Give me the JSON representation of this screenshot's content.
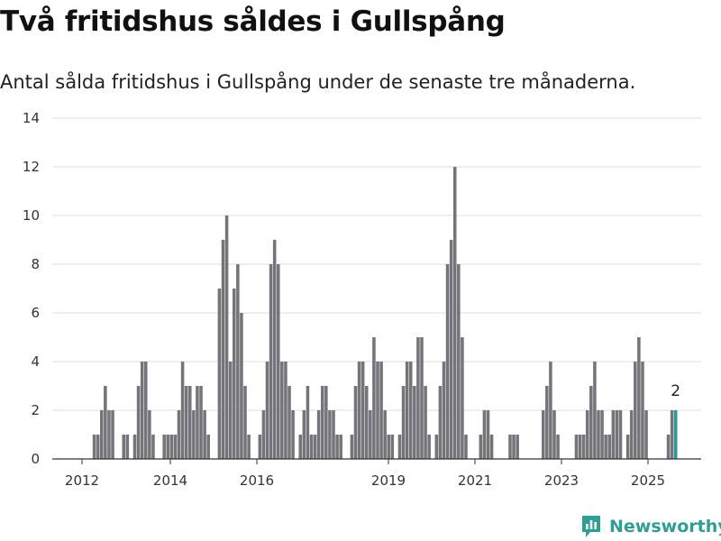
{
  "header": {
    "title": "Två fritidshus såldes i Gullspång",
    "subtitle": "Antal sålda fritidshus i Gullspång under de senaste tre månaderna."
  },
  "brand": {
    "name": "Newsworthy",
    "color": "#2f9e94",
    "icon": "newsworthy-logo-icon"
  },
  "colors": {
    "bar": "#75747a",
    "highlight": "#2a9a91",
    "grid": "#dddddd",
    "axis": "#333333"
  },
  "chart_data": {
    "type": "bar",
    "title": "Två fritidshus såldes i Gullspång",
    "subtitle": "Antal sålda fritidshus i Gullspång under de senaste tre månaderna.",
    "x_ticks": [
      "2012",
      "2014",
      "2016",
      "2019",
      "2021",
      "2023",
      "2025"
    ],
    "y_ticks": [
      0,
      2,
      4,
      6,
      8,
      10,
      12,
      14
    ],
    "ylim": [
      0,
      14
    ],
    "grid": true,
    "series": [
      {
        "values": [
          0,
          0,
          0,
          0,
          0,
          0,
          0,
          0,
          0,
          0,
          1,
          1,
          2,
          3,
          2,
          2,
          0,
          0,
          1,
          1,
          0,
          1,
          3,
          4,
          4,
          2,
          1,
          0,
          0,
          1,
          1,
          1,
          1,
          2,
          4,
          3,
          3,
          2,
          3,
          3,
          2,
          1,
          0,
          0,
          7,
          9,
          10,
          4,
          7,
          8,
          6,
          3,
          1,
          0,
          0,
          1,
          2,
          4,
          8,
          9,
          8,
          4,
          4,
          3,
          2,
          0,
          1,
          2,
          3,
          1,
          1,
          2,
          3,
          3,
          2,
          2,
          1,
          1,
          0,
          0,
          1,
          3,
          4,
          4,
          3,
          2,
          5,
          4,
          4,
          2,
          1,
          1,
          0,
          1,
          3,
          4,
          4,
          3,
          5,
          5,
          3,
          1,
          0,
          1,
          3,
          4,
          8,
          9,
          12,
          8,
          5,
          1,
          0,
          0,
          0,
          1,
          2,
          2,
          1,
          0,
          0,
          0,
          0,
          1,
          1,
          1,
          0,
          0,
          0,
          0,
          0,
          0,
          2,
          3,
          4,
          2,
          1,
          0,
          0,
          0,
          0,
          1,
          1,
          1,
          2,
          3,
          4,
          2,
          2,
          1,
          1,
          2,
          2,
          2,
          0,
          1,
          2,
          4,
          5,
          4,
          2,
          0,
          0,
          0,
          0,
          0,
          1,
          2,
          2
        ]
      }
    ],
    "highlight": {
      "label": "2",
      "value": 2
    }
  }
}
